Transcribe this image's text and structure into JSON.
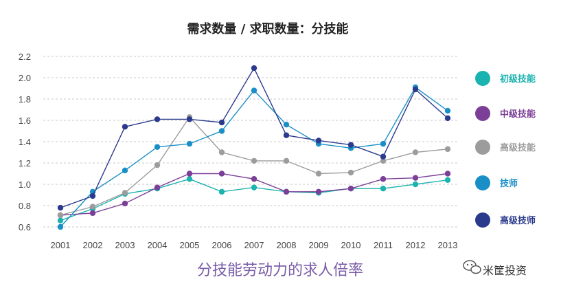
{
  "chart_data": {
    "type": "line",
    "title": "需求数量 / 求职数量：分技能",
    "subtitle": "分技能劳动力的求人倍率",
    "x": [
      "2001",
      "2002",
      "2003",
      "2004",
      "2005",
      "2006",
      "2007",
      "2008",
      "2009",
      "2010",
      "2011",
      "2012",
      "2013"
    ],
    "ylim": [
      0.6,
      2.2
    ],
    "yticks": [
      "0.6",
      "0.8",
      "1.0",
      "1.2",
      "1.4",
      "1.6",
      "1.8",
      "2.0",
      "2.2"
    ],
    "grid": "horizontal dashed",
    "legend_position": "right",
    "series": [
      {
        "name": "初级技能",
        "color": "#1bb3b0",
        "values": [
          0.66,
          0.77,
          0.91,
          0.96,
          1.05,
          0.93,
          0.97,
          0.93,
          0.92,
          0.96,
          0.96,
          1.0,
          1.04
        ]
      },
      {
        "name": "中级技能",
        "color": "#7b3f98",
        "values": [
          0.71,
          0.73,
          0.82,
          0.97,
          1.1,
          1.1,
          1.05,
          0.93,
          0.93,
          0.96,
          1.05,
          1.06,
          1.1
        ]
      },
      {
        "name": "高级技能",
        "color": "#9c9c9c",
        "values": [
          0.71,
          0.79,
          0.92,
          1.18,
          1.63,
          1.3,
          1.22,
          1.22,
          1.1,
          1.11,
          1.22,
          1.3,
          1.33
        ]
      },
      {
        "name": "技师",
        "color": "#1a8fc7",
        "values": [
          0.6,
          0.93,
          1.13,
          1.35,
          1.38,
          1.5,
          1.88,
          1.56,
          1.38,
          1.34,
          1.38,
          1.91,
          1.69
        ]
      },
      {
        "name": "高级技师",
        "color": "#2b3a8c",
        "values": [
          0.78,
          0.89,
          1.54,
          1.61,
          1.61,
          1.58,
          2.09,
          1.46,
          1.41,
          1.37,
          1.26,
          1.89,
          1.62
        ]
      }
    ]
  },
  "watermark": {
    "text": "米筐投资",
    "icon": "wechat-icon"
  }
}
